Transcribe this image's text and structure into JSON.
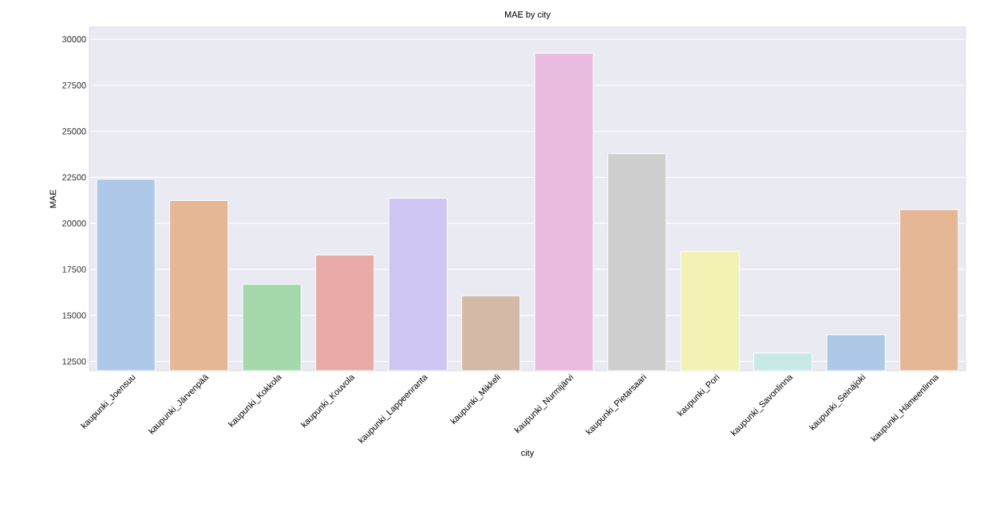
{
  "chart_data": {
    "type": "bar",
    "title": "MAE by city",
    "xlabel": "city",
    "ylabel": "MAE",
    "categories": [
      "kaupunki_Joensuu",
      "kaupunki_Järvenpää",
      "kaupunki_Kokkola",
      "kaupunki_Kouvola",
      "kaupunki_Lappeenranta",
      "kaupunki_Mikkeli",
      "kaupunki_Nurmijärvi",
      "kaupunki_Pietarsaari",
      "kaupunki_Pori",
      "kaupunki_Savonlinna",
      "kaupunki_Seinäjoki",
      "kaupunki_Hämeenlinna"
    ],
    "values": [
      22400,
      21240,
      16690,
      18280,
      21370,
      16070,
      29240,
      23790,
      18490,
      12960,
      13950,
      20750
    ],
    "colors": [
      "#aec8e8",
      "#e5b795",
      "#a5d8aa",
      "#e8aba8",
      "#d0c6f3",
      "#d4b9a6",
      "#e8bbdf",
      "#cfcfcf",
      "#f2f2b5",
      "#c8eae7",
      "#aec8e8",
      "#e5b795"
    ],
    "ylim": [
      12000,
      30660
    ],
    "yticks": [
      12500,
      15000,
      17500,
      20000,
      22500,
      25000,
      27500,
      30000
    ],
    "grid": "y"
  }
}
